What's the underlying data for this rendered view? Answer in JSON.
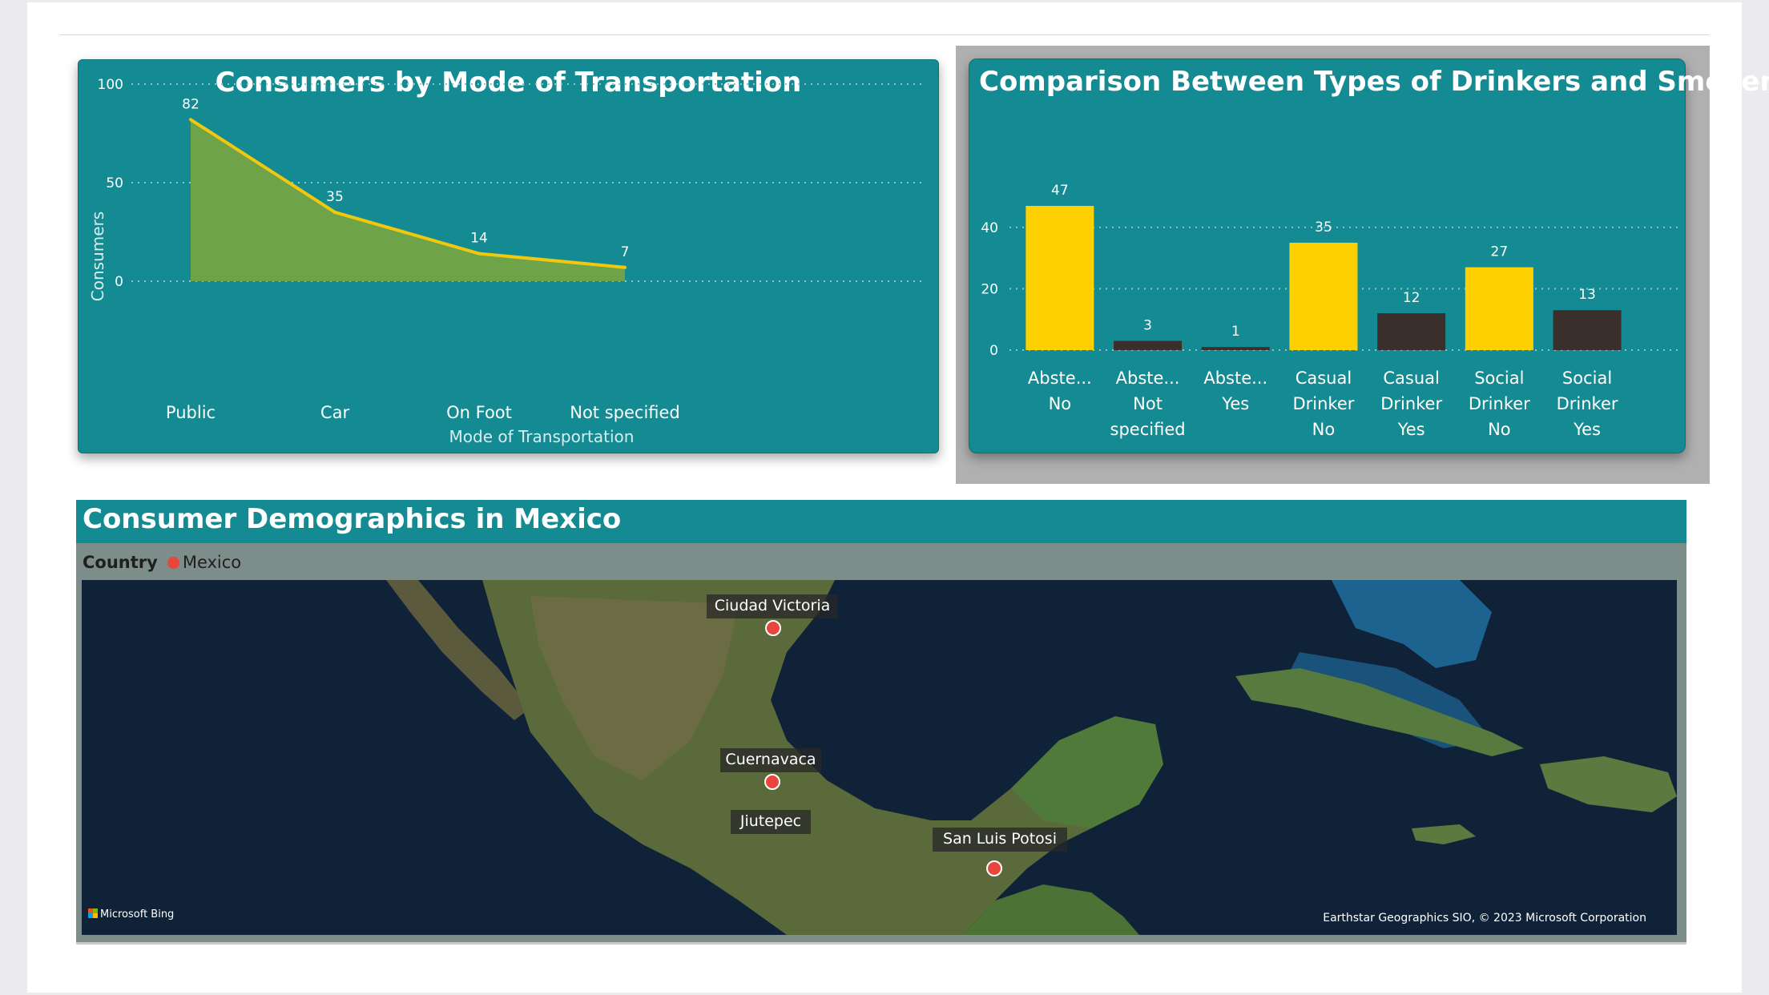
{
  "dashboard": {
    "transport_card": {
      "title": "Consumers by Mode of Transportation",
      "chart_data": {
        "type": "area",
        "title": "Consumers by Mode of Transportation",
        "xlabel": "Mode of Transportation",
        "ylabel": "Consumers",
        "categories": [
          "Public",
          "Car",
          "On Foot",
          "Not specified"
        ],
        "values": [
          82,
          35,
          14,
          7
        ],
        "ylim": [
          0,
          100
        ],
        "yticks": [
          "100",
          "50",
          "0"
        ],
        "data_labels": [
          "82",
          "35",
          "14",
          "7"
        ],
        "grid": true,
        "fill_color": "#6ea34a",
        "line_color": "#f2c80f"
      }
    },
    "drinkers_card": {
      "title": "Comparison Between Types of Drinkers and Smokers",
      "chart_data": {
        "type": "bar",
        "title": "Comparison Between Types of Drinkers and Smokers",
        "categories": [
          [
            "Abste...",
            "No"
          ],
          [
            "Abste...",
            "Not",
            "specified"
          ],
          [
            "Abste...",
            "Yes"
          ],
          [
            "Casual",
            "Drinker",
            "No"
          ],
          [
            "Casual",
            "Drinker",
            "Yes"
          ],
          [
            "Social",
            "Drinker",
            "No"
          ],
          [
            "Social",
            "Drinker",
            "Yes"
          ]
        ],
        "values": [
          47,
          3,
          1,
          35,
          12,
          27,
          13
        ],
        "data_labels": [
          "47",
          "3",
          "1",
          "35",
          "12",
          "27",
          "13"
        ],
        "bar_colors": [
          "#ffd000",
          "#3a2f2a",
          "#3a2f2a",
          "#ffd000",
          "#3a2f2a",
          "#ffd000",
          "#3a2f2a"
        ],
        "ylim": [
          0,
          47
        ],
        "yticks": [
          "40",
          "20",
          "0"
        ],
        "grid": true
      }
    },
    "map_card": {
      "title": "Consumer Demographics in Mexico",
      "legend_title": "Country",
      "legend_item": "Mexico",
      "legend_color": "#e8453c",
      "markers": [
        {
          "label": "Ciudad Victoria"
        },
        {
          "label": "Cuernavaca"
        },
        {
          "label": "Jiutepec"
        },
        {
          "label": "San Luis Potosi"
        }
      ],
      "provider": "Microsoft Bing",
      "copyright": "Earthstar Geographics SIO, © 2023 Microsoft Corporation"
    }
  }
}
